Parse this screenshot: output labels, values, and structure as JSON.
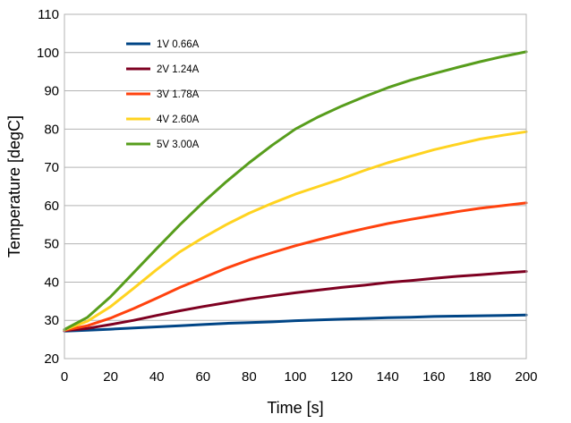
{
  "chart_data": {
    "type": "line",
    "title": "",
    "xlabel": "Time [s]",
    "ylabel": "Temperature [degC]",
    "xlim": [
      0,
      200
    ],
    "ylim": [
      20,
      110
    ],
    "xticks": [
      "0",
      "20",
      "40",
      "60",
      "80",
      "100",
      "120",
      "140",
      "160",
      "180",
      "200"
    ],
    "yticks": [
      "20",
      "30",
      "40",
      "50",
      "60",
      "70",
      "80",
      "90",
      "100",
      "110"
    ],
    "grid": "horizontal",
    "legend_position": "top-left",
    "x": [
      0,
      10,
      20,
      30,
      40,
      50,
      60,
      70,
      80,
      90,
      100,
      110,
      120,
      130,
      140,
      150,
      160,
      170,
      180,
      190,
      200
    ],
    "series": [
      {
        "name": "1V 0.66A",
        "color": "#004586",
        "values": [
          27.2,
          27.4,
          27.7,
          28.0,
          28.3,
          28.6,
          28.9,
          29.2,
          29.4,
          29.6,
          29.9,
          30.1,
          30.3,
          30.5,
          30.7,
          30.8,
          31.0,
          31.1,
          31.2,
          31.3,
          31.4
        ]
      },
      {
        "name": "2V 1.24A",
        "color": "#7e0021",
        "values": [
          27.3,
          27.9,
          28.9,
          30.0,
          31.3,
          32.5,
          33.6,
          34.6,
          35.6,
          36.4,
          37.2,
          37.9,
          38.6,
          39.2,
          39.9,
          40.4,
          41.0,
          41.5,
          41.9,
          42.4,
          42.8
        ]
      },
      {
        "name": "3V 1.78A",
        "color": "#ff420e",
        "values": [
          27.4,
          28.6,
          30.6,
          33.1,
          35.8,
          38.6,
          41.1,
          43.6,
          45.8,
          47.7,
          49.5,
          51.1,
          52.6,
          54.0,
          55.3,
          56.4,
          57.4,
          58.4,
          59.3,
          60.0,
          60.7
        ]
      },
      {
        "name": "4V 2.60A",
        "color": "#ffd320",
        "values": [
          27.5,
          29.8,
          33.6,
          38.4,
          43.3,
          47.9,
          51.6,
          55.0,
          58.0,
          60.6,
          63.0,
          65.0,
          67.0,
          69.2,
          71.2,
          72.9,
          74.6,
          76.0,
          77.4,
          78.4,
          79.3
        ]
      },
      {
        "name": "5V 3.00A",
        "color": "#579d1c",
        "values": [
          27.6,
          30.8,
          36.2,
          42.5,
          48.8,
          55.0,
          60.8,
          66.2,
          71.2,
          75.8,
          80.0,
          83.2,
          86.0,
          88.5,
          90.8,
          92.8,
          94.5,
          96.1,
          97.6,
          99.0,
          100.2
        ]
      }
    ]
  }
}
